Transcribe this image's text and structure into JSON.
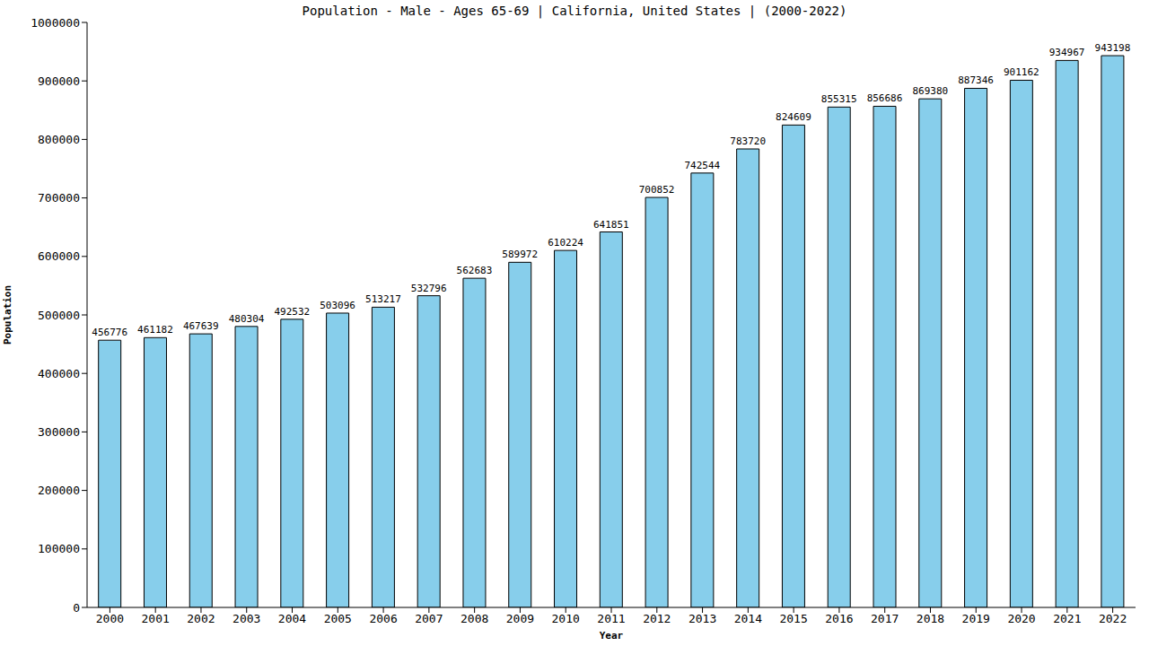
{
  "chart_data": {
    "type": "bar",
    "title": "Population - Male - Ages 65-69 | California, United States |  (2000-2022)",
    "x_label": "Year",
    "y_label": "Population",
    "categories": [
      "2000",
      "2001",
      "2002",
      "2003",
      "2004",
      "2005",
      "2006",
      "2007",
      "2008",
      "2009",
      "2010",
      "2011",
      "2012",
      "2013",
      "2014",
      "2015",
      "2016",
      "2017",
      "2018",
      "2019",
      "2020",
      "2021",
      "2022"
    ],
    "values": [
      456776,
      461182,
      467639,
      480304,
      492532,
      503096,
      513217,
      532796,
      562683,
      589972,
      610224,
      641851,
      700852,
      742544,
      783720,
      824609,
      855315,
      856686,
      869380,
      887346,
      901162,
      934967,
      943198
    ],
    "color": "#87ceeb",
    "ylim": [
      0,
      1000000
    ],
    "yticks": [
      0,
      100000,
      200000,
      300000,
      400000,
      500000,
      600000,
      700000,
      800000,
      900000,
      1000000
    ],
    "grid": false,
    "data_labels": true
  }
}
